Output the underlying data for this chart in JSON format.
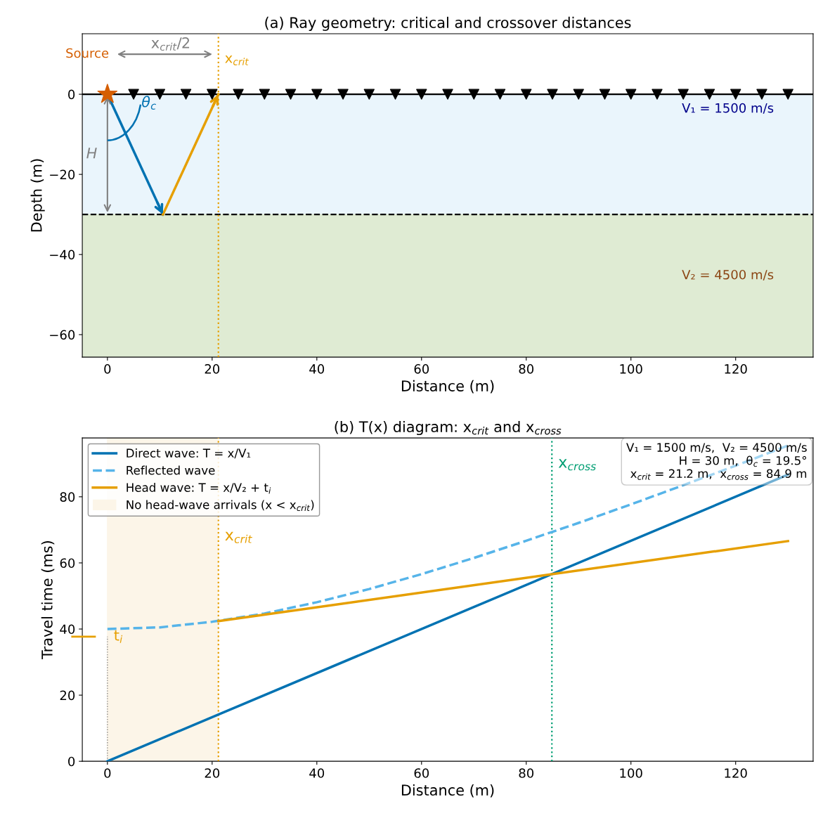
{
  "chart_data": [
    {
      "type": "scatter",
      "title": "(a) Ray geometry: critical and crossover distances",
      "xlabel": "Distance (m)",
      "ylabel": "Depth (m)",
      "xlim": [
        -4.8,
        134.8
      ],
      "ylim": [
        -65.6,
        15.1
      ],
      "xticks": [
        0,
        20,
        40,
        60,
        80,
        100,
        120
      ],
      "yticks": [
        {
          "value": -60,
          "label": "−60"
        },
        {
          "value": -40,
          "label": "−40"
        },
        {
          "value": -20,
          "label": "−20"
        },
        0
      ],
      "series": [
        {
          "type": "line",
          "color": "#0072b2",
          "x": [
            0,
            10.6
          ],
          "values": [
            0,
            -30
          ],
          "marker": "none",
          "line_style": "solid"
        },
        {
          "type": "line",
          "color": "#e69f00",
          "x": [
            10.6,
            21.2
          ],
          "values": [
            -30,
            0
          ],
          "marker": "none",
          "line_style": "solid"
        },
        {
          "type": "scatter",
          "color": "#000000",
          "marker": "triangle",
          "x": [
            5,
            10,
            15,
            20,
            25,
            30,
            35,
            40,
            45,
            50,
            55,
            60,
            65,
            70,
            75,
            80,
            85,
            90,
            95,
            100,
            105,
            110,
            115,
            120,
            125,
            130
          ],
          "values": [
            0,
            0,
            0,
            0,
            0,
            0,
            0,
            0,
            0,
            0,
            0,
            0,
            0,
            0,
            0,
            0,
            0,
            0,
            0,
            0,
            0,
            0,
            0,
            0,
            0,
            0
          ]
        },
        {
          "type": "scatter",
          "color": "#d55e00",
          "marker": "star",
          "x": [
            0
          ],
          "values": [
            0
          ]
        }
      ],
      "bands": [
        {
          "axis": "y",
          "from": -30,
          "to": 0,
          "label": "V₁ = 1500 m/s",
          "color": "#eaf5fc"
        },
        {
          "axis": "y",
          "from": -65.6,
          "to": -30,
          "label": "V₂ = 4500 m/s",
          "color": "#dfebd3"
        }
      ],
      "ref_lines": [
        {
          "axis": "y",
          "value": 0,
          "color": "#000000",
          "line_style": "solid"
        },
        {
          "axis": "y",
          "value": -30,
          "color": "#000000",
          "line_style": "dashed"
        },
        {
          "axis": "x",
          "value": 21.2,
          "label": "x$_{crit}$",
          "color": "#e69f00",
          "line_style": "dotted"
        }
      ],
      "annotations": [
        "Source",
        "θ$_{c}$",
        "H",
        "x$_{crit}$/2"
      ]
    },
    {
      "type": "line",
      "title": "(b) T(x) diagram: x$_{crit}$ and x$_{cross}$",
      "xlabel": "Distance (m)",
      "ylabel": "Travel time (ms)",
      "xlim": [
        -4.8,
        134.8
      ],
      "ylim": [
        0,
        97.8
      ],
      "xticks": [
        0,
        20,
        40,
        60,
        80,
        100,
        120
      ],
      "yticks": [
        0,
        20,
        40,
        60,
        80
      ],
      "legend": "top left",
      "series": [
        {
          "name": "Direct wave: T = x/V₁",
          "color": "#0072b2",
          "line_style": "solid",
          "x": [
            0,
            130
          ],
          "values": [
            0,
            86.7
          ]
        },
        {
          "name": "Reflected wave",
          "color": "#56b4e9",
          "line_style": "dashed",
          "x": [
            0,
            10,
            20,
            30,
            40,
            50,
            60,
            70,
            80,
            90,
            100,
            110,
            120,
            130
          ],
          "values": [
            40,
            40.5,
            42.2,
            44.7,
            48.1,
            52.1,
            56.6,
            61.5,
            66.7,
            72.1,
            77.7,
            83.5,
            89.4,
            95.5
          ]
        },
        {
          "name": "Head wave: T = x/V₂ + t$_{i}$",
          "color": "#e69f00",
          "line_style": "solid",
          "x": [
            21.2,
            130
          ],
          "values": [
            42.4,
            66.6
          ]
        }
      ],
      "bands": [
        {
          "axis": "x",
          "from": 0,
          "to": 21.2,
          "label": "No head-wave arrivals (x < x$_{crit}$)",
          "color": "#fcf5e8"
        }
      ],
      "ref_lines": [
        {
          "axis": "x",
          "value": 21.2,
          "label": "x$_{crit}$",
          "color": "#e69f00",
          "line_style": "dotted"
        },
        {
          "axis": "x",
          "value": 84.9,
          "label": "x$_{cross}$",
          "color": "#009e73",
          "line_style": "dotted"
        },
        {
          "axis": "y",
          "value": 37.7,
          "label": "t$_{i}$",
          "color": "#e69f00",
          "line_style": "solid"
        }
      ],
      "annotations": [
        "V₁ = 1500 m/s,  V₂ = 4500 m/s\nH = 30 m,  θ$_{c}$ = 19.5°\nx$_{crit}$ = 21.2 m,  x$_{cross}$ = 84.9 m"
      ]
    }
  ]
}
